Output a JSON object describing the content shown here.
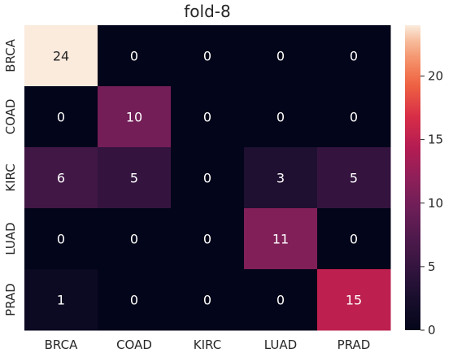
{
  "chart_data": {
    "type": "heatmap",
    "title": "fold-8",
    "xlabel": "",
    "ylabel": "",
    "x_categories": [
      "BRCA",
      "COAD",
      "KIRC",
      "LUAD",
      "PRAD"
    ],
    "y_categories": [
      "BRCA",
      "COAD",
      "KIRC",
      "LUAD",
      "PRAD"
    ],
    "values": [
      [
        24,
        0,
        0,
        0,
        0
      ],
      [
        0,
        10,
        0,
        0,
        0
      ],
      [
        6,
        5,
        0,
        3,
        5
      ],
      [
        0,
        0,
        0,
        11,
        0
      ],
      [
        1,
        0,
        0,
        0,
        15
      ]
    ],
    "colorbar": {
      "min": 0,
      "max": 24,
      "ticks": [
        0,
        5,
        10,
        15,
        20
      ]
    },
    "colormap": "rocket",
    "grid": false
  }
}
